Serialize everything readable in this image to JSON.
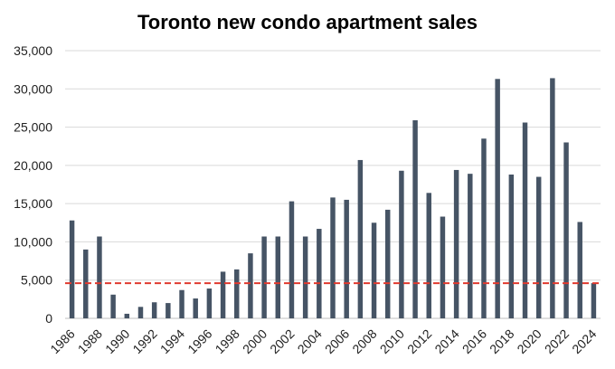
{
  "chart_data": {
    "type": "bar",
    "title": "Toronto new condo apartment sales",
    "xlabel": "",
    "ylabel": "",
    "ylim": [
      0,
      35000
    ],
    "y_ticks": [
      "0",
      "5,000",
      "10,000",
      "15,000",
      "20,000",
      "25,000",
      "30,000",
      "35,000"
    ],
    "y_tick_values": [
      0,
      5000,
      10000,
      15000,
      20000,
      25000,
      30000,
      35000
    ],
    "grid": "horizontal",
    "bar_color": "#465465",
    "reference_line": {
      "value": 4600,
      "style": "dashed",
      "color": "#e03a2f"
    },
    "categories": [
      "1986",
      "1987",
      "1988",
      "1989",
      "1990",
      "1991",
      "1992",
      "1993",
      "1994",
      "1995",
      "1996",
      "1997",
      "1998",
      "1999",
      "2000",
      "2001",
      "2002",
      "2003",
      "2004",
      "2005",
      "2006",
      "2007",
      "2008",
      "2009",
      "2010",
      "2011",
      "2012",
      "2013",
      "2014",
      "2015",
      "2016",
      "2017",
      "2018",
      "2019",
      "2020",
      "2021",
      "2022",
      "2023",
      "2024"
    ],
    "x_tick_labels": [
      "1986",
      "1988",
      "1990",
      "1992",
      "1994",
      "1996",
      "1998",
      "2000",
      "2002",
      "2004",
      "2006",
      "2008",
      "2010",
      "2012",
      "2014",
      "2016",
      "2018",
      "2020",
      "2022",
      "2024"
    ],
    "values": [
      12800,
      9000,
      10700,
      3100,
      600,
      1500,
      2100,
      2000,
      3700,
      2600,
      3900,
      6100,
      6400,
      8500,
      10700,
      10700,
      15300,
      10700,
      11700,
      15800,
      15500,
      20700,
      12500,
      14200,
      19300,
      25900,
      16400,
      13300,
      19400,
      18900,
      23500,
      31300,
      18800,
      25600,
      18500,
      31400,
      23000,
      12600,
      4600
    ]
  }
}
